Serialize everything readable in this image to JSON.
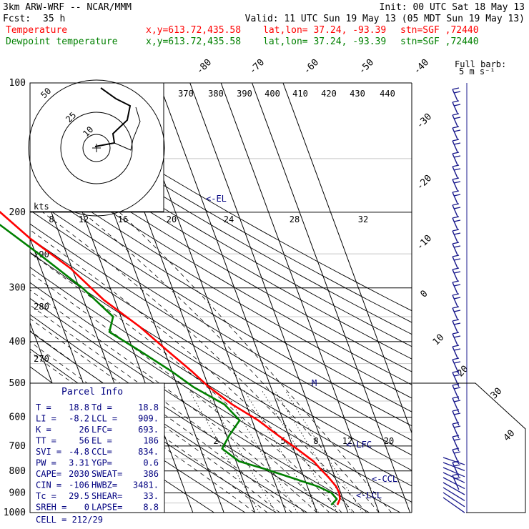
{
  "header": {
    "model": "3km ARW-WRF -- NCAR/MMM",
    "init": "Init: 00 UTC Sat 18 May 13",
    "fcst_label": "Fcst:",
    "fcst_value": "35 h",
    "valid": "Valid: 11 UTC Sun 19 May 13 (05 MDT Sun 19 May 13)",
    "temp_line": {
      "name": "Temperature",
      "xy": "x,y=613.72,435.58",
      "latlon": "lat,lon= 37.24, -93.39",
      "stn": "stn=SGF ,72440"
    },
    "dew_line": {
      "name": "Dewpoint temperature",
      "xy": "x,y=613.72,435.58",
      "latlon": "lat,lon= 37.24, -93.39",
      "stn": "stn=SGF ,72440"
    },
    "barb_title": "Full barb:",
    "barb_unit": "5 m s⁻¹"
  },
  "colors": {
    "temperature": "#ff0000",
    "dewpoint": "#008000",
    "parcel": "#000080",
    "wind": "#1a1a8c"
  },
  "parcel_info": {
    "title": "Parcel Info",
    "rows": [
      {
        "l1": "T  =",
        "v1": "18.8",
        "l2": "Td =",
        "v2": "18.8"
      },
      {
        "l1": "LI =",
        "v1": "-8.2",
        "l2": "LCL =",
        "v2": "909."
      },
      {
        "l1": "K  =",
        "v1": "26",
        "l2": "LFC=",
        "v2": "693."
      },
      {
        "l1": "TT =",
        "v1": "56",
        "l2": "EL =",
        "v2": "186"
      },
      {
        "l1": "SVI =",
        "v1": "-4.8",
        "l2": "CCL=",
        "v2": "834."
      },
      {
        "l1": "PW =",
        "v1": "3.31",
        "l2": "YGP=",
        "v2": "0.6"
      },
      {
        "l1": "CAPE=",
        "v1": "2030",
        "l2": "SWEAT=",
        "v2": "386"
      },
      {
        "l1": "CIN =",
        "v1": "-106",
        "l2": "HWBZ=",
        "v2": "3481."
      },
      {
        "l1": "Tc =",
        "v1": "29.5",
        "l2": "SHEAR=",
        "v2": "33."
      },
      {
        "l1": "SREH =",
        "v1": "0",
        "l2": "LAPSE=",
        "v2": "8.8"
      }
    ],
    "cell": "CELL = 212/29"
  },
  "hodograph": {
    "rings": [
      "50",
      "25",
      "10"
    ],
    "units": "kts"
  },
  "chart_data": {
    "type": "line",
    "title": "",
    "ylabel": "",
    "xlabel": "",
    "y_scale": "log-pressure",
    "ylim": [
      1000,
      100
    ],
    "pressure_ticks": [
      "100",
      "200",
      "300",
      "400",
      "500",
      "600",
      "700",
      "800",
      "900",
      "1000"
    ],
    "temperature_ticks": [
      "-80",
      "-70",
      "-60",
      "-50",
      "-40",
      "-30",
      "-20",
      "-10",
      "0",
      "10",
      "20",
      "30",
      "40"
    ],
    "theta_labels": [
      "370",
      "380",
      "390",
      "400",
      "410",
      "420",
      "430",
      "440"
    ],
    "theta_labels_lower": [
      "290",
      "280",
      "270"
    ],
    "mixing_ratio_labels_upper": [
      "8",
      "12",
      "16",
      "20",
      "24",
      "28",
      "32"
    ],
    "mixing_ratio_labels_lower": [
      "2",
      "5",
      "8",
      "12",
      "20"
    ],
    "annotations": [
      "<-EL",
      "<-LFC",
      "<-CCL",
      "<-LCL"
    ],
    "series": [
      {
        "name": "Temperature",
        "color": "#ff0000",
        "points": [
          [
            960,
            17.5
          ],
          [
            930,
            19
          ],
          [
            900,
            19.5
          ],
          [
            870,
            19.3
          ],
          [
            830,
            18
          ],
          [
            790,
            16.2
          ],
          [
            760,
            15
          ],
          [
            710,
            11
          ],
          [
            660,
            6.5
          ],
          [
            610,
            2
          ],
          [
            560,
            -4.5
          ],
          [
            510,
            -10
          ],
          [
            470,
            -13.5
          ],
          [
            420,
            -19
          ],
          [
            370,
            -25
          ],
          [
            320,
            -33.5
          ],
          [
            270,
            -40.5
          ],
          [
            230,
            -50
          ],
          [
            200,
            -56.5
          ],
          [
            170,
            -63
          ],
          [
            145,
            -66
          ],
          [
            128,
            -63.5
          ],
          [
            112,
            -57
          ],
          [
            100,
            -53
          ]
        ]
      },
      {
        "name": "Dewpoint temperature",
        "color": "#008000",
        "points": [
          [
            960,
            15.5
          ],
          [
            930,
            18
          ],
          [
            900,
            17
          ],
          [
            870,
            13.5
          ],
          [
            830,
            6
          ],
          [
            790,
            -2
          ],
          [
            760,
            -9
          ],
          [
            710,
            -13
          ],
          [
            660,
            -9
          ],
          [
            610,
            -4
          ],
          [
            560,
            -7
          ],
          [
            510,
            -15
          ],
          [
            470,
            -20
          ],
          [
            420,
            -28
          ],
          [
            380,
            -35.5
          ],
          [
            350,
            -32.5
          ],
          [
            300,
            -39
          ],
          [
            250,
            -49
          ],
          [
            200,
            -62
          ],
          [
            170,
            -71
          ],
          [
            145,
            -75
          ],
          [
            125,
            -76
          ],
          [
            108,
            -72
          ],
          [
            100,
            -72
          ]
        ]
      }
    ],
    "wind_profile": "barbs on right edge, 1000-100 hPa"
  }
}
